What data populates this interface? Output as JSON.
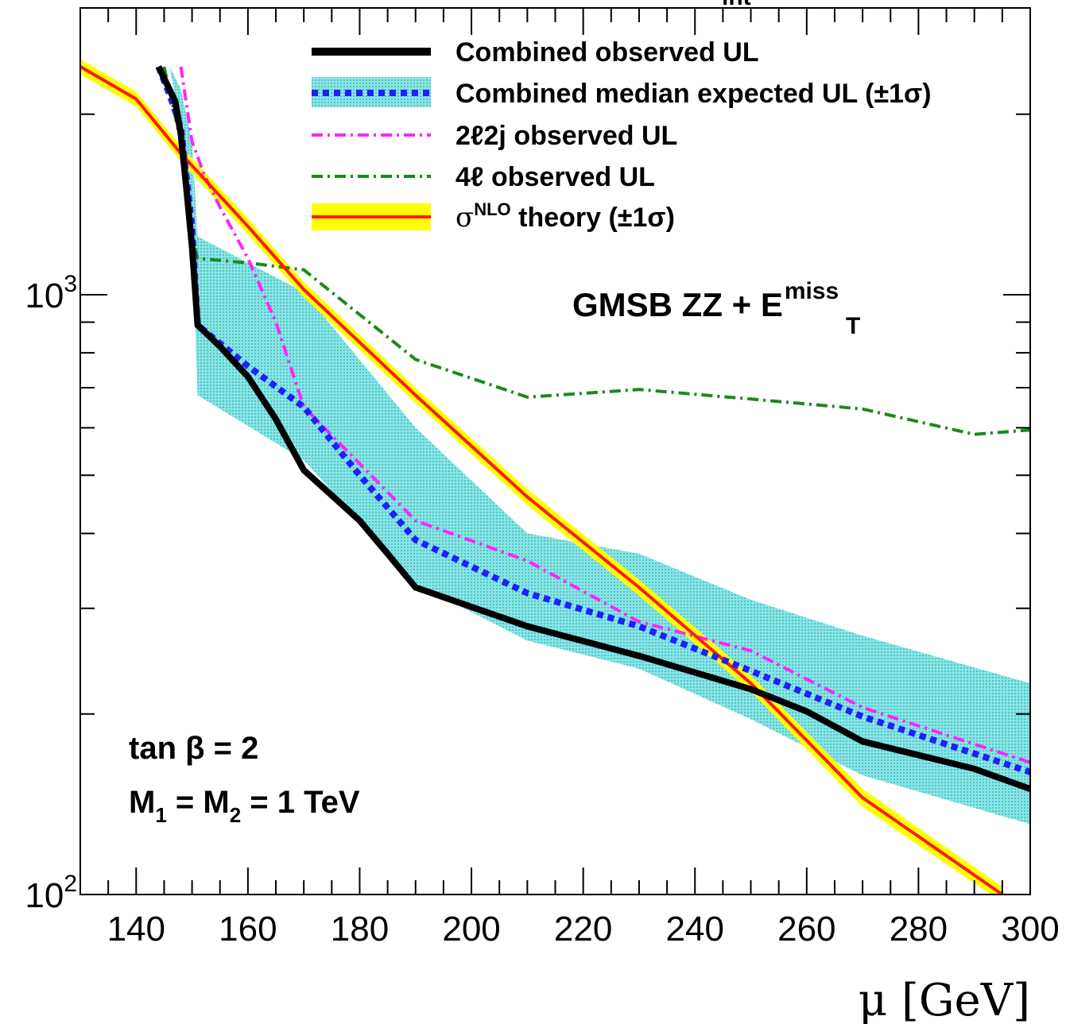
{
  "chart_data": {
    "type": "line",
    "xlabel": "μ [GeV]",
    "ylabel": "",
    "xlim": [
      130,
      300
    ],
    "ylim": [
      100,
      2400
    ],
    "yscale": "log",
    "grid": false,
    "legend_placement": "top-right",
    "x_ticks": [
      "140",
      "160",
      "180",
      "200",
      "220",
      "240",
      "260",
      "280",
      "300"
    ],
    "y_ticks": [
      {
        "base": "10",
        "exp": "2",
        "value": 100
      },
      {
        "base": "10",
        "exp": "3",
        "value": 1000
      }
    ],
    "title_fragment": "int",
    "annotations": {
      "process": {
        "main": "GMSB  ZZ + E",
        "sup": "miss",
        "sub": "T"
      },
      "tanbeta": "tan β = 2",
      "masses": {
        "m1": "M",
        "sub1": "1",
        "eq": " = M",
        "sub2": "2",
        "rest": " = 1 TeV"
      }
    },
    "legend": {
      "obs": "Combined observed UL",
      "exp": "Combined median expected UL (±1σ)",
      "twol": "2ℓ2j observed UL",
      "fourl": "4ℓ observed UL",
      "theory_sym": "σ",
      "theory_sup": "NLO",
      "theory_rest": " theory (±1σ)"
    },
    "series": [
      {
        "key": "obs",
        "name": "Combined observed UL",
        "color": "#000000",
        "x": [
          144,
          147,
          148,
          149,
          150,
          151,
          155,
          160,
          165,
          170,
          180,
          185,
          190,
          210,
          230,
          250,
          260,
          270,
          290,
          300
        ],
        "y": [
          2400,
          2100,
          1850,
          1500,
          1200,
          890,
          820,
          730,
          620,
          510,
          420,
          370,
          325,
          280,
          250,
          220,
          202,
          180,
          162,
          150
        ]
      },
      {
        "key": "exp",
        "name": "Combined median expected UL (±1σ)",
        "color": "#1f1fff",
        "x": [
          144,
          146,
          148,
          150,
          151,
          160,
          170,
          180,
          190,
          210,
          230,
          250,
          270,
          300
        ],
        "y": [
          2400,
          2150,
          1900,
          1300,
          890,
          760,
          650,
          500,
          390,
          318,
          280,
          236,
          198,
          160
        ]
      },
      {
        "key": "twol",
        "name": "2ℓ2j observed UL",
        "color": "#ff22ff",
        "x": [
          148,
          150,
          151,
          152,
          155,
          160,
          165,
          170,
          190,
          210,
          230,
          250,
          270,
          300
        ],
        "y": [
          2400,
          1800,
          1700,
          1600,
          1400,
          1150,
          900,
          650,
          420,
          360,
          285,
          255,
          205,
          166
        ]
      },
      {
        "key": "fourl",
        "name": "4ℓ observed UL",
        "color": "#1a8a1a",
        "x": [
          145,
          148,
          150,
          151,
          160,
          170,
          190,
          210,
          230,
          250,
          270,
          290,
          300
        ],
        "y": [
          2400,
          1800,
          1250,
          1150,
          1130,
          1100,
          780,
          675,
          695,
          670,
          645,
          585,
          595
        ]
      },
      {
        "key": "theory",
        "name": "σNLO theory (±1σ)",
        "color": "#ff1a1a",
        "band_color": "#ffff00",
        "x": [
          130,
          140,
          148,
          160,
          170,
          190,
          210,
          230,
          250,
          270,
          295
        ],
        "y": [
          2400,
          2120,
          1720,
          1300,
          1020,
          680,
          460,
          325,
          225,
          145,
          100
        ],
        "band_lower": [
          2330,
          2060,
          1670,
          1260,
          990,
          660,
          446,
          315,
          218,
          140,
          97
        ],
        "band_upper": [
          2470,
          2180,
          1770,
          1340,
          1050,
          700,
          474,
          335,
          232,
          150,
          103
        ]
      }
    ],
    "expected_band": {
      "color": "#55d3d3",
      "x": [
        146,
        148,
        150,
        151,
        170,
        190,
        210,
        230,
        250,
        270,
        300
      ],
      "lower": [
        2400,
        1900,
        1250,
        680,
        530,
        330,
        265,
        238,
        196,
        158,
        131
      ],
      "upper": [
        2400,
        2200,
        1800,
        1250,
        1010,
        600,
        400,
        370,
        310,
        270,
        225
      ]
    }
  }
}
